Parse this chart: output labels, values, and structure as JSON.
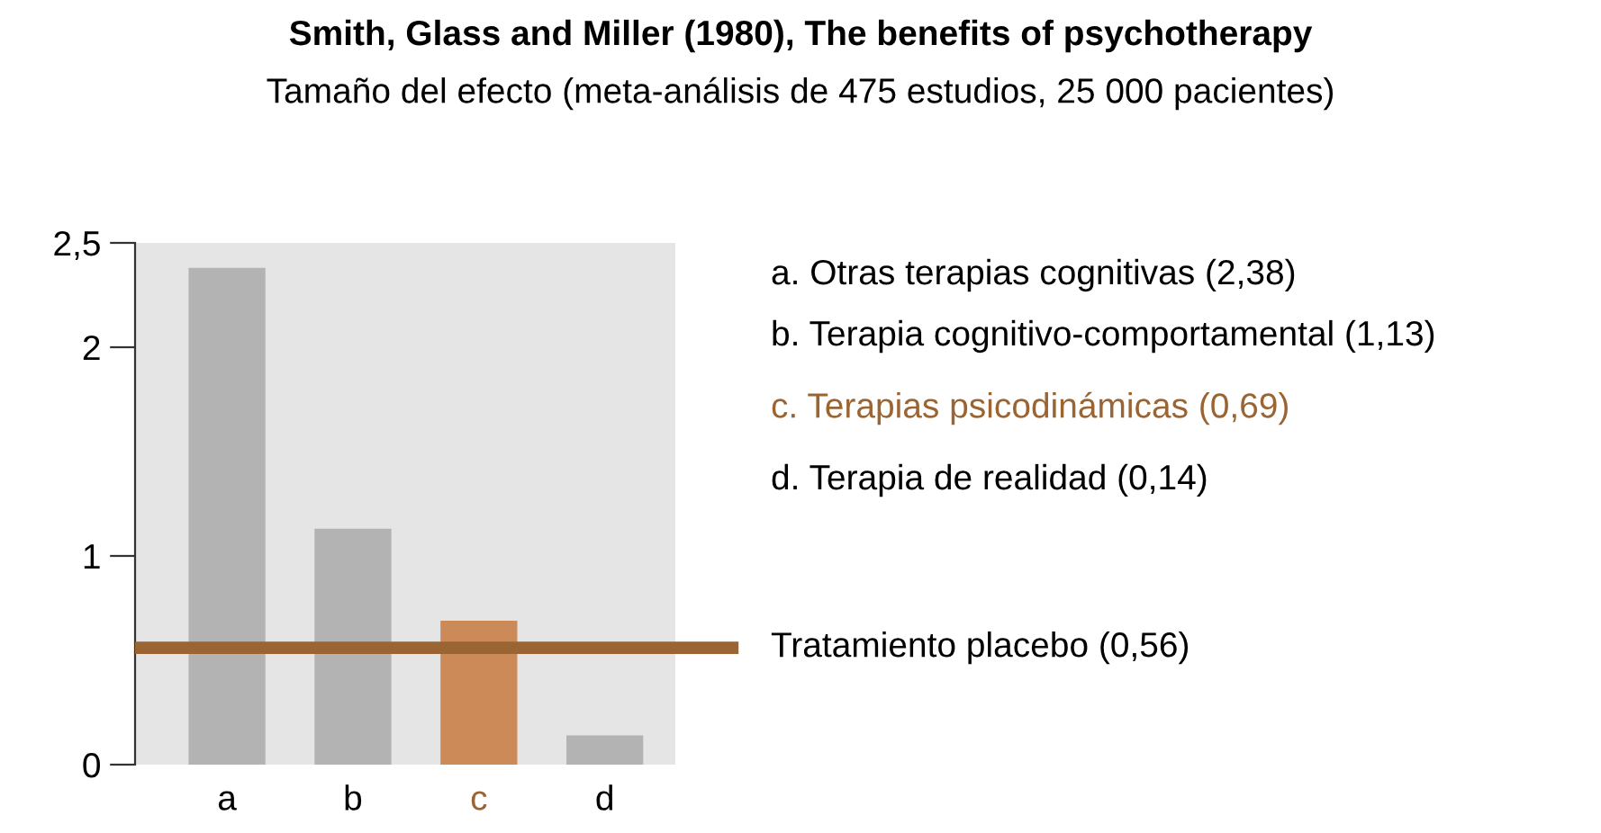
{
  "chart_data": {
    "type": "bar",
    "title": "Smith, Glass and Miller (1980), The benefits of psychotherapy",
    "subtitle": "Tamaño del efecto (meta-análisis de 475 estudios, 25 000 pacientes)",
    "categories": [
      "a",
      "b",
      "c",
      "d"
    ],
    "values": [
      2.38,
      1.13,
      0.69,
      0.14
    ],
    "colors": [
      "#b3b3b3",
      "#b3b3b3",
      "#cc8a58",
      "#b3b3b3"
    ],
    "ylim": [
      0,
      2.5
    ],
    "yticks": [
      0,
      1,
      2,
      {
        "value": 2.5,
        "label": "2,5"
      }
    ],
    "grid": false,
    "ref_lines": [
      {
        "axis": "y",
        "value": 0.56,
        "label": "Tratamiento placebo (0,56)",
        "color": "#9a6433"
      }
    ],
    "annotations": [
      "a. Otras terapias cognitivas (2,38)",
      "b. Terapia cognitivo-comportamental (1,13)",
      "c. Terapias psicodinámicas (0,69)",
      "d. Terapia de realidad (0,14)"
    ]
  }
}
